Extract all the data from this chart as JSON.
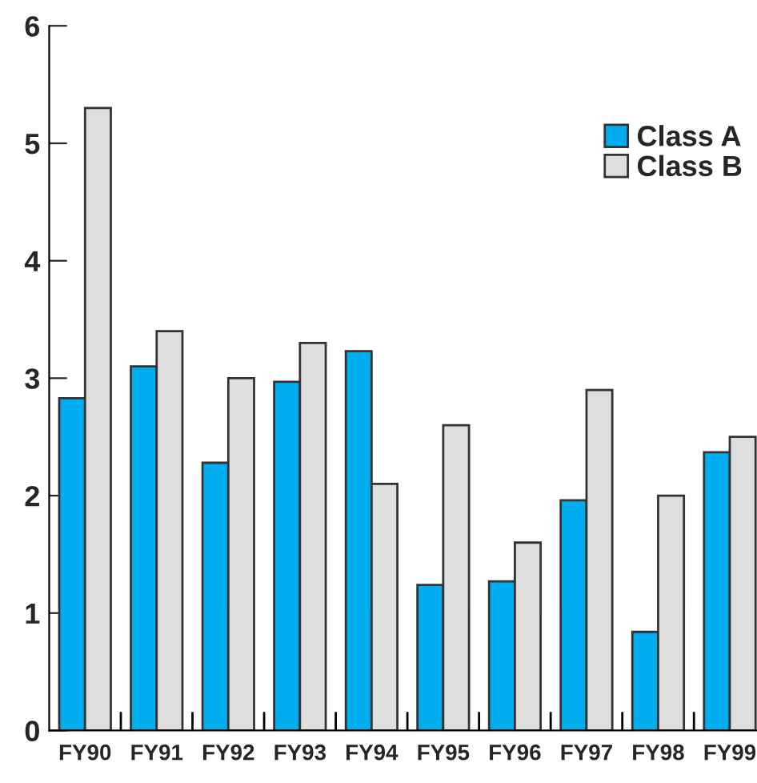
{
  "chart_data": {
    "type": "bar",
    "categories": [
      "FY90",
      "FY91",
      "FY92",
      "FY93",
      "FY94",
      "FY95",
      "FY96",
      "FY97",
      "FY98",
      "FY99"
    ],
    "series": [
      {
        "name": "Class A",
        "color": "#00adef",
        "values": [
          2.83,
          3.1,
          2.28,
          2.97,
          3.23,
          1.24,
          1.27,
          1.96,
          0.84,
          2.37
        ]
      },
      {
        "name": "Class B",
        "color": "#dedede",
        "values": [
          5.3,
          3.4,
          3.0,
          3.3,
          2.1,
          2.6,
          1.6,
          2.9,
          2.0,
          2.5
        ]
      }
    ],
    "ylim": [
      0,
      6
    ],
    "yticks": [
      0,
      1,
      2,
      3,
      4,
      5,
      6
    ],
    "grid": false,
    "legend": "top right"
  }
}
